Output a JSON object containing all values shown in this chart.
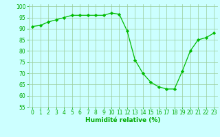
{
  "x": [
    0,
    1,
    2,
    3,
    4,
    5,
    6,
    7,
    8,
    9,
    10,
    11,
    12,
    13,
    14,
    15,
    16,
    17,
    18,
    19,
    20,
    21,
    22,
    23
  ],
  "y": [
    91,
    91.5,
    93,
    94,
    95,
    96,
    96,
    96,
    96,
    96,
    97,
    96.5,
    89,
    76,
    70,
    66,
    64,
    63,
    63,
    71,
    80,
    85,
    86,
    88
  ],
  "line_color": "#00bb00",
  "marker": "D",
  "marker_size": 2.2,
  "bg_color": "#ccffff",
  "grid_color": "#99cc99",
  "xlabel": "Humidité relative (%)",
  "xlabel_color": "#00aa00",
  "xlabel_fontsize": 6.5,
  "tick_color": "#00aa00",
  "tick_fontsize": 5.5,
  "ylim": [
    55,
    101
  ],
  "yticks": [
    55,
    60,
    65,
    70,
    75,
    80,
    85,
    90,
    95,
    100
  ],
  "xlim": [
    -0.5,
    23.5
  ]
}
